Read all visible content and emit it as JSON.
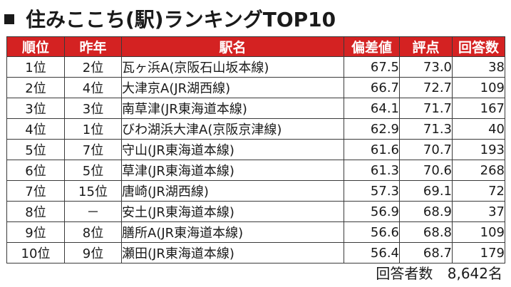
{
  "title": "住みここち(駅)ランキングTOP10",
  "table": {
    "headers": [
      "順位",
      "昨年",
      "駅名",
      "偏差値",
      "評点",
      "回答数"
    ],
    "rows": [
      {
        "rank": "1位",
        "prev": "2位",
        "name": "瓦ヶ浜A(京阪石山坂本線)",
        "score": "67.5",
        "rating": "73.0",
        "count": "38"
      },
      {
        "rank": "2位",
        "prev": "4位",
        "name": "大津京A(JR湖西線)",
        "score": "66.7",
        "rating": "72.7",
        "count": "109"
      },
      {
        "rank": "3位",
        "prev": "3位",
        "name": "南草津(JR東海道本線)",
        "score": "64.1",
        "rating": "71.7",
        "count": "167"
      },
      {
        "rank": "4位",
        "prev": "1位",
        "name": "びわ湖浜大津A(京阪京津線)",
        "score": "62.9",
        "rating": "71.3",
        "count": "40"
      },
      {
        "rank": "5位",
        "prev": "7位",
        "name": "守山(JR東海道本線)",
        "score": "61.6",
        "rating": "70.7",
        "count": "193"
      },
      {
        "rank": "6位",
        "prev": "5位",
        "name": "草津(JR東海道本線)",
        "score": "61.3",
        "rating": "70.6",
        "count": "268"
      },
      {
        "rank": "7位",
        "prev": "15位",
        "name": "唐崎(JR湖西線)",
        "score": "57.3",
        "rating": "69.1",
        "count": "72"
      },
      {
        "rank": "8位",
        "prev": "－",
        "name": "安土(JR東海道本線)",
        "score": "56.9",
        "rating": "68.9",
        "count": "37"
      },
      {
        "rank": "9位",
        "prev": "8位",
        "name": "膳所A(JR東海道本線)",
        "score": "56.6",
        "rating": "68.8",
        "count": "109"
      },
      {
        "rank": "10位",
        "prev": "9位",
        "name": "瀬田(JR東海道本線)",
        "score": "56.4",
        "rating": "68.7",
        "count": "179"
      }
    ]
  },
  "footer": {
    "label": "回答者数",
    "value": "8,642名"
  },
  "colors": {
    "header_bg": "#d42222",
    "header_text": "#ffffff",
    "border": "#3a3a3a"
  }
}
